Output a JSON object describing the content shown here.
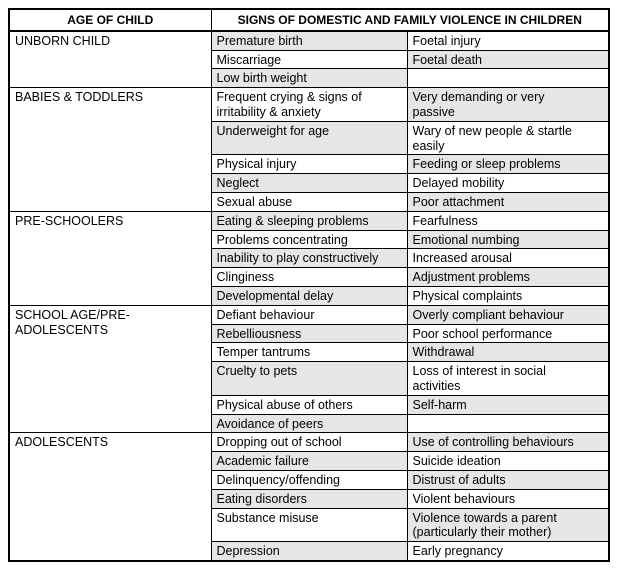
{
  "page": {
    "background": "#ffffff"
  },
  "table": {
    "colors": {
      "border": "#000000",
      "shaded_cell": "#e7e6e6",
      "text": "#000000"
    },
    "header": {
      "age_column": "AGE OF CHILD",
      "signs_column": "SIGNS OF DOMESTIC AND FAMILY VIOLENCE IN CHILDREN"
    },
    "groups": [
      {
        "age": "UNBORN CHILD",
        "rows": [
          {
            "left": {
              "text": "Premature birth",
              "shaded": true
            },
            "right": {
              "text": "Foetal injury",
              "shaded": false
            }
          },
          {
            "left": {
              "text": "Miscarriage",
              "shaded": false
            },
            "right": {
              "text": "Foetal death",
              "shaded": true
            }
          },
          {
            "left": {
              "text": "Low birth weight",
              "shaded": true
            },
            "right": {
              "text": "",
              "shaded": false
            }
          }
        ]
      },
      {
        "age": "BABIES & TODDLERS",
        "rows": [
          {
            "left": {
              "text": "Frequent crying & signs of\nirritability & anxiety",
              "shaded": false
            },
            "right": {
              "text": "Very demanding or very\npassive",
              "shaded": true
            }
          },
          {
            "left": {
              "text": "Underweight for age",
              "shaded": true
            },
            "right": {
              "text": "Wary of new people & startle\neasily",
              "shaded": false
            }
          },
          {
            "left": {
              "text": "Physical injury",
              "shaded": false
            },
            "right": {
              "text": "Feeding or sleep problems",
              "shaded": true
            }
          },
          {
            "left": {
              "text": "Neglect",
              "shaded": true
            },
            "right": {
              "text": "Delayed mobility",
              "shaded": false
            }
          },
          {
            "left": {
              "text": "Sexual abuse",
              "shaded": false
            },
            "right": {
              "text": "Poor attachment",
              "shaded": true
            }
          }
        ]
      },
      {
        "age": "PRE-SCHOOLERS",
        "rows": [
          {
            "left": {
              "text": "Eating & sleeping problems",
              "shaded": true
            },
            "right": {
              "text": "Fearfulness",
              "shaded": false
            }
          },
          {
            "left": {
              "text": "Problems concentrating",
              "shaded": false
            },
            "right": {
              "text": "Emotional numbing",
              "shaded": true
            }
          },
          {
            "left": {
              "text": "Inability to play constructively",
              "shaded": true
            },
            "right": {
              "text": "Increased arousal",
              "shaded": false
            }
          },
          {
            "left": {
              "text": "Clinginess",
              "shaded": false
            },
            "right": {
              "text": "Adjustment problems",
              "shaded": true
            }
          },
          {
            "left": {
              "text": "Developmental delay",
              "shaded": true
            },
            "right": {
              "text": "Physical complaints",
              "shaded": false
            }
          }
        ]
      },
      {
        "age": "SCHOOL AGE/PRE-\nADOLESCENTS",
        "rows": [
          {
            "left": {
              "text": "Defiant behaviour",
              "shaded": false
            },
            "right": {
              "text": "Overly compliant behaviour",
              "shaded": true
            }
          },
          {
            "left": {
              "text": "Rebelliousness",
              "shaded": true
            },
            "right": {
              "text": "Poor school performance",
              "shaded": false
            }
          },
          {
            "left": {
              "text": "Temper tantrums",
              "shaded": false
            },
            "right": {
              "text": "Withdrawal",
              "shaded": true
            }
          },
          {
            "left": {
              "text": "Cruelty to pets",
              "shaded": true
            },
            "right": {
              "text": "Loss of interest in social\nactivities",
              "shaded": false
            }
          },
          {
            "left": {
              "text": "Physical abuse of others",
              "shaded": false
            },
            "right": {
              "text": "Self-harm",
              "shaded": true
            }
          },
          {
            "left": {
              "text": "Avoidance of peers",
              "shaded": true
            },
            "right": {
              "text": "",
              "shaded": false
            }
          }
        ]
      },
      {
        "age": "ADOLESCENTS",
        "rows": [
          {
            "left": {
              "text": "Dropping out of school",
              "shaded": false
            },
            "right": {
              "text": "Use of controlling behaviours",
              "shaded": true
            }
          },
          {
            "left": {
              "text": "Academic failure",
              "shaded": true
            },
            "right": {
              "text": "Suicide ideation",
              "shaded": false
            }
          },
          {
            "left": {
              "text": "Delinquency/offending",
              "shaded": false
            },
            "right": {
              "text": "Distrust of adults",
              "shaded": true
            }
          },
          {
            "left": {
              "text": "Eating disorders",
              "shaded": true
            },
            "right": {
              "text": "Violent behaviours",
              "shaded": false
            }
          },
          {
            "left": {
              "text": "Substance misuse",
              "shaded": false
            },
            "right": {
              "text": "Violence towards a parent\n(particularly their mother)",
              "shaded": true
            }
          },
          {
            "left": {
              "text": "Depression",
              "shaded": true
            },
            "right": {
              "text": "Early pregnancy",
              "shaded": false
            }
          }
        ]
      }
    ]
  }
}
